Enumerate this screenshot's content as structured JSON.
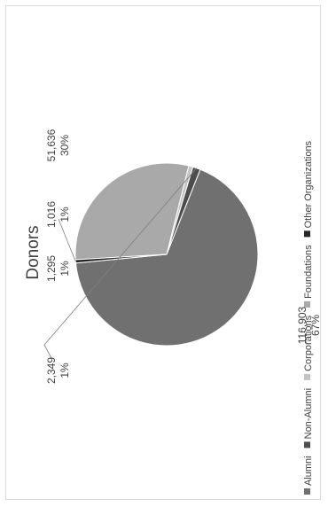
{
  "chart_data": {
    "type": "pie",
    "title": "Donors",
    "orientation": "rotated-90-ccw",
    "legend_position": "right",
    "slices": [
      {
        "name": "Alumni",
        "value": 116903,
        "value_label": "116,903",
        "percent_label": "67%",
        "color": "#707070"
      },
      {
        "name": "Non-Alumni",
        "value": 2349,
        "value_label": "2,349",
        "percent_label": "1%",
        "color": "#4d4d4d"
      },
      {
        "name": "Corporations",
        "value": 1295,
        "value_label": "1,295",
        "percent_label": "1%",
        "color": "#c4c4c4"
      },
      {
        "name": "Foundations",
        "value": 51636,
        "value_label": "51,636",
        "percent_label": "30%",
        "color": "#a9a9a9"
      },
      {
        "name": "Other Organizations",
        "value": 1016,
        "value_label": "1,016",
        "percent_label": "1%",
        "color": "#262626"
      }
    ]
  }
}
